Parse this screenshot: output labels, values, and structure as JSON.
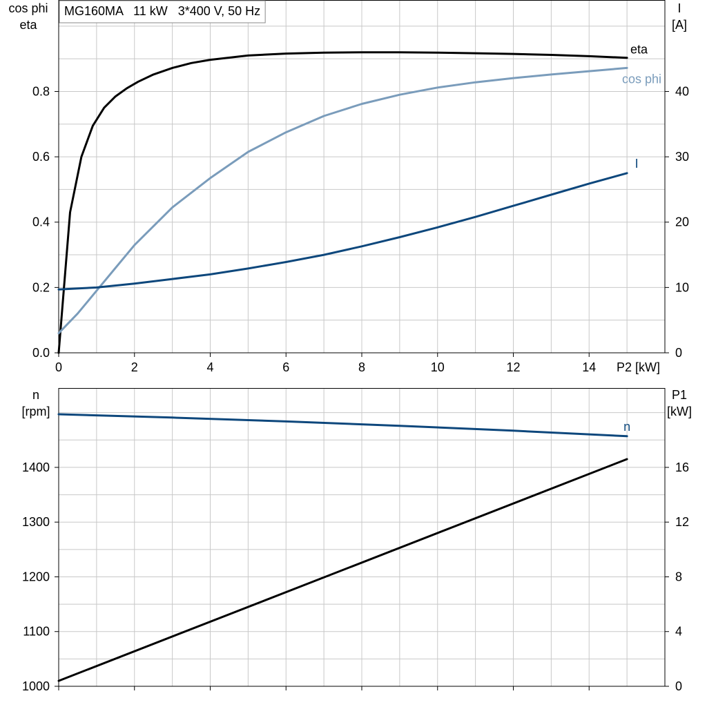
{
  "colors": {
    "background": "#ffffff",
    "grid": "#c8c8c8",
    "axis": "#000000",
    "eta": "#000000",
    "cos_phi": "#7a9cbb",
    "current": "#0d477c",
    "speed": "#0d477c",
    "p1": "#000000"
  },
  "chart_data": [
    {
      "type": "line",
      "title": "MG160MA   11 kW   3*400 V, 50 Hz",
      "xlabel": "P2 [kW]",
      "xlim": [
        0,
        16
      ],
      "xticks": [
        0,
        2,
        4,
        6,
        8,
        10,
        12,
        14
      ],
      "y_left": {
        "label_lines": [
          "cos phi",
          "eta"
        ],
        "lim": [
          0,
          1.08
        ],
        "ticks": [
          0.0,
          0.2,
          0.4,
          0.6,
          0.8
        ],
        "tick_labels": [
          "0.0",
          "0.2",
          "0.4",
          "0.6",
          "0.8"
        ]
      },
      "y_right": {
        "label_lines": [
          "I",
          "[A]"
        ],
        "lim": [
          0,
          54
        ],
        "ticks": [
          0,
          10,
          20,
          30,
          40
        ],
        "tick_labels": [
          "0",
          "10",
          "20",
          "30",
          "40"
        ]
      },
      "grid": true,
      "series": [
        {
          "name": "eta",
          "axis": "left",
          "color": "#000000",
          "points": [
            [
              0,
              0.0
            ],
            [
              0.3,
              0.43
            ],
            [
              0.6,
              0.6
            ],
            [
              0.9,
              0.695
            ],
            [
              1.2,
              0.75
            ],
            [
              1.5,
              0.785
            ],
            [
              1.8,
              0.81
            ],
            [
              2.1,
              0.83
            ],
            [
              2.5,
              0.852
            ],
            [
              3,
              0.872
            ],
            [
              3.5,
              0.887
            ],
            [
              4,
              0.897
            ],
            [
              5,
              0.91
            ],
            [
              6,
              0.916
            ],
            [
              7,
              0.919
            ],
            [
              8,
              0.92
            ],
            [
              9,
              0.92
            ],
            [
              10,
              0.919
            ],
            [
              11,
              0.917
            ],
            [
              12,
              0.915
            ],
            [
              13,
              0.912
            ],
            [
              14,
              0.908
            ],
            [
              15,
              0.903
            ]
          ]
        },
        {
          "name": "cos phi",
          "axis": "left",
          "color": "#7a9cbb",
          "points": [
            [
              0,
              0.06
            ],
            [
              0.5,
              0.12
            ],
            [
              1,
              0.19
            ],
            [
              1.5,
              0.26
            ],
            [
              2,
              0.33
            ],
            [
              3,
              0.445
            ],
            [
              4,
              0.535
            ],
            [
              5,
              0.615
            ],
            [
              6,
              0.675
            ],
            [
              7,
              0.725
            ],
            [
              8,
              0.762
            ],
            [
              9,
              0.79
            ],
            [
              10,
              0.812
            ],
            [
              11,
              0.828
            ],
            [
              12,
              0.841
            ],
            [
              13,
              0.852
            ],
            [
              14,
              0.862
            ],
            [
              15,
              0.872
            ]
          ]
        },
        {
          "name": "I",
          "axis": "right",
          "color": "#0d477c",
          "points": [
            [
              0,
              9.7
            ],
            [
              1,
              10.0
            ],
            [
              2,
              10.6
            ],
            [
              3,
              11.3
            ],
            [
              4,
              12.0
            ],
            [
              5,
              12.9
            ],
            [
              6,
              13.9
            ],
            [
              7,
              15.0
            ],
            [
              8,
              16.3
            ],
            [
              9,
              17.7
            ],
            [
              10,
              19.2
            ],
            [
              11,
              20.8
            ],
            [
              12,
              22.5
            ],
            [
              13,
              24.2
            ],
            [
              14,
              25.9
            ],
            [
              15,
              27.5
            ]
          ]
        }
      ],
      "legend": "labels at line ends (right)"
    },
    {
      "type": "line",
      "xlim": [
        0,
        16
      ],
      "xticks": [
        0,
        2,
        4,
        6,
        8,
        10,
        12,
        14
      ],
      "y_left": {
        "label_lines": [
          "n",
          "[rpm]"
        ],
        "lim": [
          1000,
          1545
        ],
        "ticks": [
          1000,
          1100,
          1200,
          1300,
          1400
        ],
        "tick_labels": [
          "1000",
          "1100",
          "1200",
          "1300",
          "1400"
        ]
      },
      "y_right": {
        "label_lines": [
          "P1",
          "[kW]"
        ],
        "lim": [
          0,
          21.8
        ],
        "ticks": [
          0,
          4,
          8,
          12,
          16
        ],
        "tick_labels": [
          "0",
          "4",
          "8",
          "12",
          "16"
        ]
      },
      "grid": true,
      "series": [
        {
          "name": "n",
          "axis": "left",
          "color": "#0d477c",
          "points": [
            [
              0,
              1497
            ],
            [
              3,
              1491
            ],
            [
              6,
              1484
            ],
            [
              9,
              1476
            ],
            [
              12,
              1467
            ],
            [
              15,
              1457
            ]
          ]
        },
        {
          "axis": "right",
          "color": "#000000",
          "points": [
            [
              0,
              0.4
            ],
            [
              15,
              16.6
            ]
          ]
        }
      ],
      "legend": "labels at line ends (right)"
    }
  ]
}
